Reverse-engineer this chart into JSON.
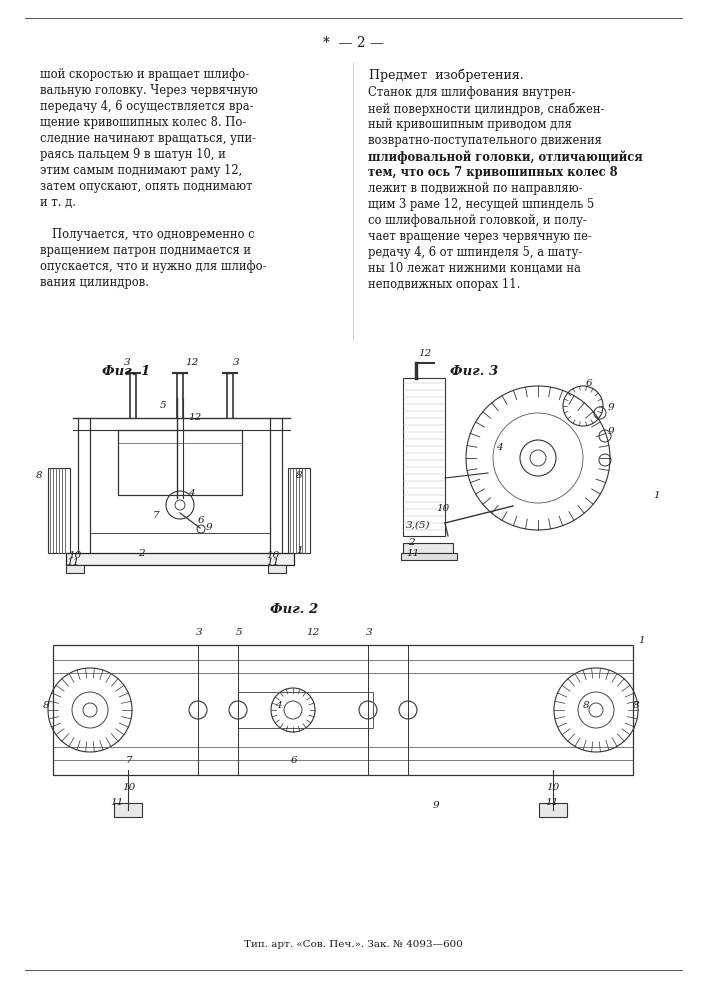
{
  "page_number": "*  — 2 —",
  "background_color": "#ffffff",
  "text_color": "#1a1a1a",
  "left_column_text": [
    "шой скоростью и вращает шлифо-",
    "вальную головку. Через червячную",
    "передачу 4, 6 осуществляется вра-",
    "щение кривошипных колес 8. По-",
    "следние начинают вращаться, упи-",
    "раясь пальцем 9 в шатун 10, и",
    "этим самым поднимают раму 12,",
    "затем опускают, опять поднимают",
    "и т. д.",
    "",
    "Получается, что одновременно с",
    "вращением патрон поднимается и",
    "опускается, что и нужно для шлифо-",
    "вания цилиндров."
  ],
  "right_column_title": "Предмет  изобретения.",
  "right_column_text": [
    "Станок для шлифования внутрен-",
    "ней поверхности цилиндров, снабжен-",
    "ный кривошипным приводом для",
    "возвратно-поступательного движения",
    "шлифовальной головки, отличающийся",
    "тем, что ось 7 кривошипных колес 8",
    "лежит в подвижной по направляю-",
    "щим 3 раме 12, несущей шпиндель 5",
    "со шлифовальной головкой, и полу-",
    "чает вращение через червячную пе-",
    "редачу 4, 6 от шпинделя 5, а шату-",
    "ны 10 лежат нижними концами на",
    "неподвижных опорах 11."
  ],
  "fig1_label": "Фиг. 1",
  "fig2_label": "Фиг. 2",
  "fig3_label": "Фиг. 3",
  "footer_text": "Тип. арт. «Сов. Печ.». Зак. № 4093—600"
}
